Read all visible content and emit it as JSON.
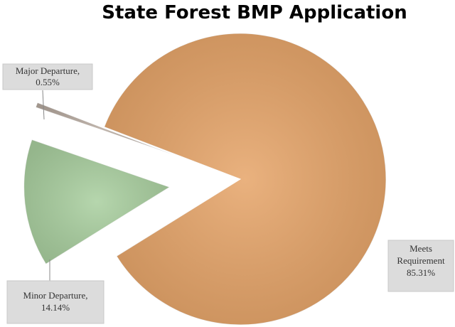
{
  "chart_data": {
    "type": "pie",
    "title": "State Forest BMP Application",
    "categories": [
      "Meets Requirement",
      "Minor Departure,",
      "Major Departure,"
    ],
    "values": [
      85.31,
      14.14,
      0.55
    ],
    "value_labels": [
      "85.31%",
      "14.14%",
      "0.55%"
    ],
    "colors": [
      "#e6a468",
      "#a9cf9f",
      "#b7aaa0"
    ]
  }
}
